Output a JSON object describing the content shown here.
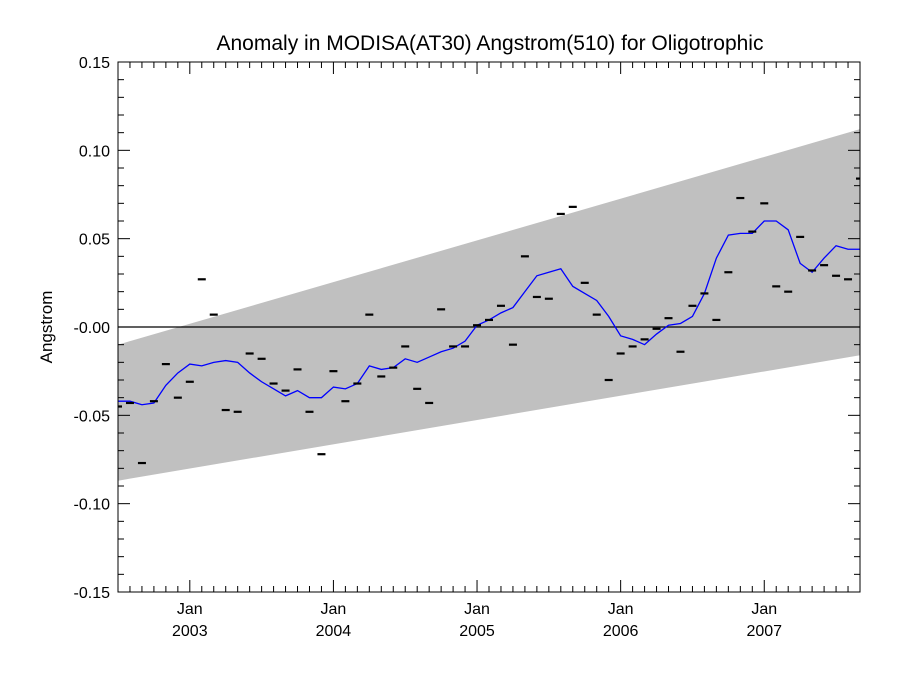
{
  "chart_data": {
    "type": "line",
    "title": "Anomaly in MODISA(AT30) Angstrom(510) for Oligotrophic",
    "ylabel": "Angstrom",
    "xlabel": "",
    "ylim": [
      -0.15,
      0.15
    ],
    "y_ticks": [
      "0.15",
      "0.10",
      "0.05",
      "-0.00",
      "-0.05",
      "-0.10",
      "-0.15"
    ],
    "y_tick_values": [
      0.15,
      0.1,
      0.05,
      0.0,
      -0.05,
      -0.1,
      -0.15
    ],
    "x_range": [
      "2002-07",
      "2007-09"
    ],
    "x_ticks": [
      {
        "month": "Jan",
        "year": "2003",
        "date": "2003-01"
      },
      {
        "month": "Jan",
        "year": "2004",
        "date": "2004-01"
      },
      {
        "month": "Jan",
        "year": "2005",
        "date": "2005-01"
      },
      {
        "month": "Jan",
        "year": "2006",
        "date": "2006-01"
      },
      {
        "month": "Jan",
        "year": "2007",
        "date": "2007-01"
      }
    ],
    "zero_line": 0.0,
    "band": {
      "color": "#c0c0c0",
      "lower_start": -0.087,
      "lower_end": -0.016,
      "upper_start": -0.01,
      "upper_end": 0.112
    },
    "monthly_anomaly": {
      "color": "#000000",
      "x": [
        "2002-07",
        "2002-08",
        "2002-09",
        "2002-10",
        "2002-11",
        "2002-12",
        "2003-01",
        "2003-02",
        "2003-03",
        "2003-04",
        "2003-05",
        "2003-06",
        "2003-07",
        "2003-08",
        "2003-09",
        "2003-10",
        "2003-11",
        "2003-12",
        "2004-01",
        "2004-02",
        "2004-03",
        "2004-04",
        "2004-05",
        "2004-06",
        "2004-07",
        "2004-08",
        "2004-09",
        "2004-10",
        "2004-11",
        "2004-12",
        "2005-01",
        "2005-02",
        "2005-03",
        "2005-04",
        "2005-05",
        "2005-06",
        "2005-07",
        "2005-08",
        "2005-09",
        "2005-10",
        "2005-11",
        "2005-12",
        "2006-01",
        "2006-02",
        "2006-03",
        "2006-04",
        "2006-05",
        "2006-06",
        "2006-07",
        "2006-08",
        "2006-09",
        "2006-10",
        "2006-11",
        "2006-12",
        "2007-01",
        "2007-02",
        "2007-03",
        "2007-04",
        "2007-05",
        "2007-06",
        "2007-07",
        "2007-08",
        "2007-09"
      ],
      "y": [
        -0.045,
        -0.043,
        -0.077,
        -0.042,
        -0.021,
        -0.04,
        -0.031,
        0.027,
        0.007,
        -0.047,
        -0.048,
        -0.015,
        -0.018,
        -0.032,
        -0.036,
        -0.024,
        -0.048,
        -0.072,
        -0.025,
        -0.042,
        -0.032,
        0.007,
        -0.028,
        -0.023,
        -0.011,
        -0.035,
        -0.043,
        0.01,
        -0.011,
        -0.011,
        0.001,
        0.004,
        0.012,
        -0.01,
        0.04,
        0.017,
        0.016,
        0.064,
        0.068,
        0.025,
        0.007,
        -0.03,
        -0.015,
        -0.011,
        -0.007,
        -0.001,
        0.005,
        -0.014,
        0.012,
        0.019,
        0.004,
        0.031,
        0.073,
        0.054,
        0.07,
        0.023,
        0.02,
        0.051,
        0.032,
        0.035,
        0.029,
        0.027,
        0.084
      ]
    },
    "running_mean": {
      "color": "#0000ff",
      "x": [
        "2002-07",
        "2002-08",
        "2002-09",
        "2002-10",
        "2002-11",
        "2002-12",
        "2003-01",
        "2003-02",
        "2003-03",
        "2003-04",
        "2003-05",
        "2003-06",
        "2003-07",
        "2003-08",
        "2003-09",
        "2003-10",
        "2003-11",
        "2003-12",
        "2004-01",
        "2004-02",
        "2004-03",
        "2004-04",
        "2004-05",
        "2004-06",
        "2004-07",
        "2004-08",
        "2004-09",
        "2004-10",
        "2004-11",
        "2004-12",
        "2005-01",
        "2005-02",
        "2005-03",
        "2005-04",
        "2005-05",
        "2005-06",
        "2005-07",
        "2005-08",
        "2005-09",
        "2005-10",
        "2005-11",
        "2005-12",
        "2006-01",
        "2006-02",
        "2006-03",
        "2006-04",
        "2006-05",
        "2006-06",
        "2006-07",
        "2006-08",
        "2006-09",
        "2006-10",
        "2006-11",
        "2006-12",
        "2007-01",
        "2007-02",
        "2007-03",
        "2007-04",
        "2007-05",
        "2007-06",
        "2007-07",
        "2007-08",
        "2007-09"
      ],
      "y": [
        -0.042,
        -0.042,
        -0.044,
        -0.043,
        -0.033,
        -0.026,
        -0.021,
        -0.022,
        -0.02,
        -0.019,
        -0.02,
        -0.026,
        -0.031,
        -0.035,
        -0.039,
        -0.036,
        -0.04,
        -0.04,
        -0.034,
        -0.035,
        -0.032,
        -0.022,
        -0.024,
        -0.023,
        -0.018,
        -0.02,
        -0.017,
        -0.014,
        -0.012,
        -0.008,
        0.001,
        0.004,
        0.008,
        0.011,
        0.02,
        0.029,
        0.031,
        0.033,
        0.023,
        0.019,
        0.015,
        0.006,
        -0.005,
        -0.007,
        -0.01,
        -0.004,
        0.001,
        0.002,
        0.006,
        0.019,
        0.039,
        0.052,
        0.053,
        0.053,
        0.06,
        0.06,
        0.055,
        0.036,
        0.031,
        0.039,
        0.046,
        0.044,
        0.044
      ]
    }
  }
}
